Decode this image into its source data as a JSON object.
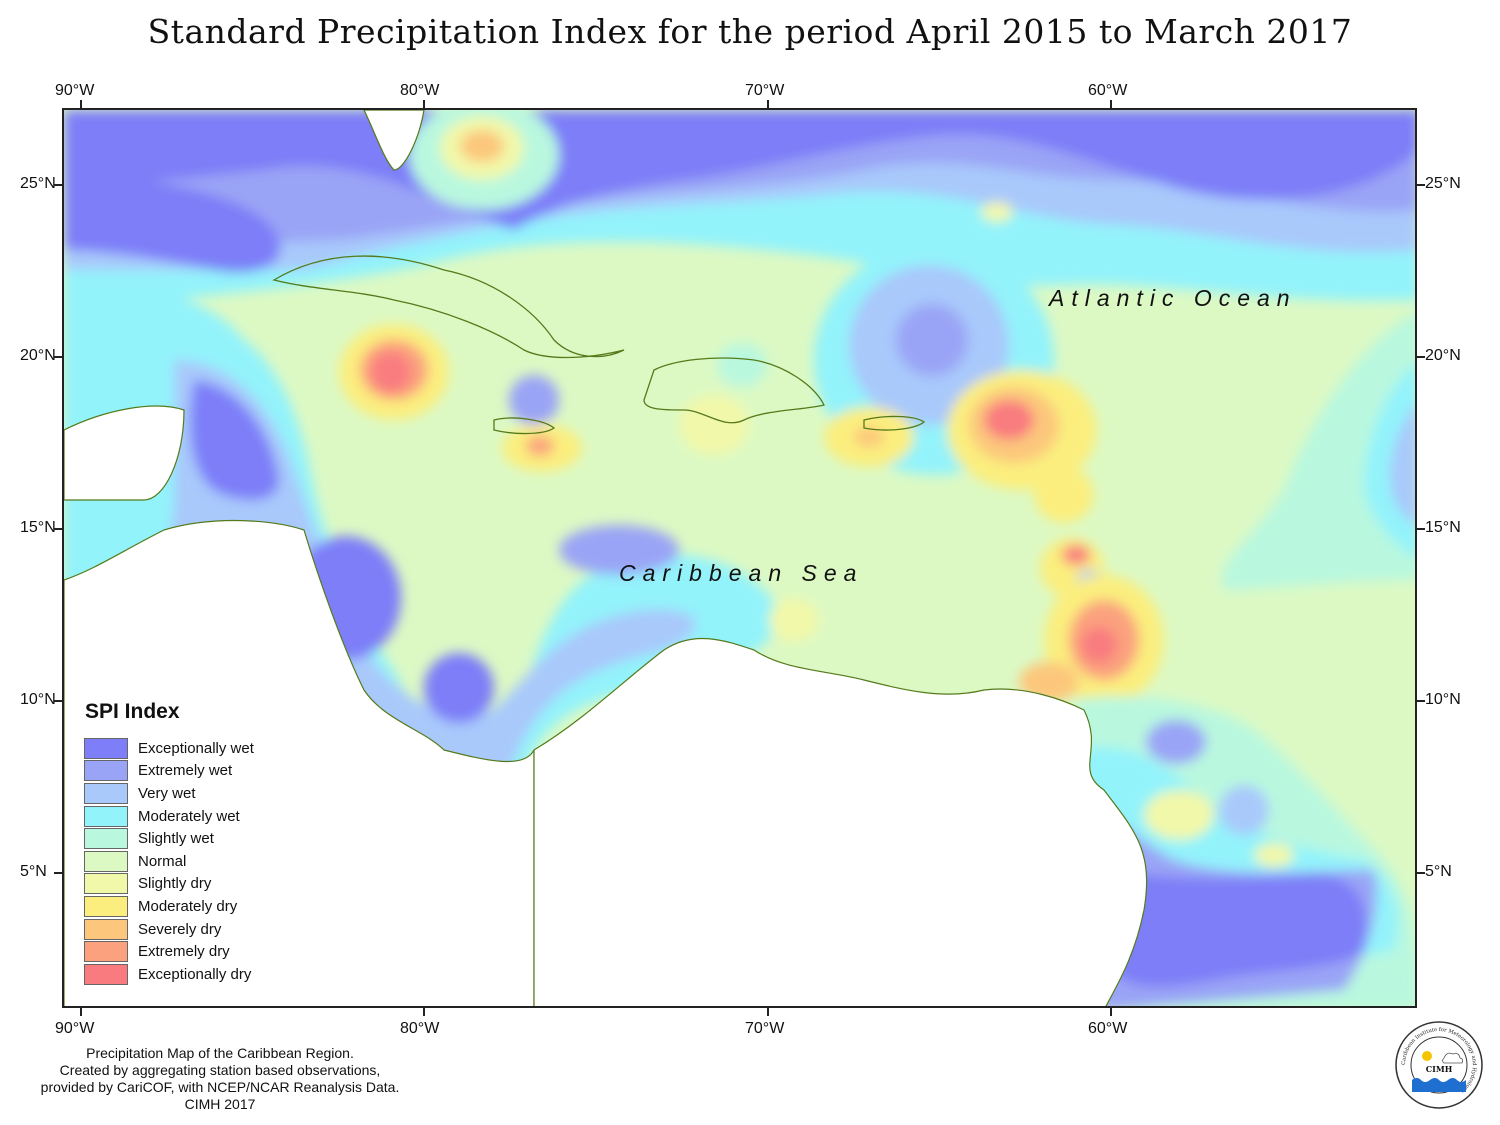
{
  "title": "Standard Precipitation Index for the period April 2015 to March 2017",
  "axes": {
    "lon_top": [
      "90°W",
      "80°W",
      "70°W",
      "60°W"
    ],
    "lon_bottom": [
      "90°W",
      "80°W",
      "70°W",
      "60°W"
    ],
    "lat_left": [
      "25°N",
      "20°N",
      "15°N",
      "10°N",
      "5°N"
    ],
    "lat_right": [
      "25°N",
      "20°N",
      "15°N",
      "10°N",
      "5°N"
    ]
  },
  "map": {
    "labels": {
      "atlantic": "Atlantic Ocean",
      "caribbean": "Caribbean Sea"
    },
    "colors": {
      "exceptionally_wet": "#7d7ef8",
      "extremely_wet": "#9aa4f6",
      "very_wet": "#a9c9fb",
      "moderately_wet": "#93f3fb",
      "slightly_wet": "#b9f8df",
      "normal": "#dcf9c4",
      "slightly_dry": "#f2f8a9",
      "moderately_dry": "#fbee7e",
      "severely_dry": "#fcc77c",
      "extremely_dry": "#fba17e",
      "exceptionally_dry": "#f97b7f"
    }
  },
  "legend": {
    "title": "SPI Index",
    "items": [
      {
        "label": "Exceptionally wet",
        "color": "#7d7ef8"
      },
      {
        "label": "Extremely wet",
        "color": "#9aa4f6"
      },
      {
        "label": "Very wet",
        "color": "#a9c9fb"
      },
      {
        "label": "Moderately wet",
        "color": "#93f3fb"
      },
      {
        "label": "Slightly wet",
        "color": "#b9f8df"
      },
      {
        "label": "Normal",
        "color": "#dcf9c4"
      },
      {
        "label": "Slightly dry",
        "color": "#f2f8a9"
      },
      {
        "label": "Moderately dry",
        "color": "#fbee7e"
      },
      {
        "label": "Severely dry",
        "color": "#fcc77c"
      },
      {
        "label": "Extremely dry",
        "color": "#fba17e"
      },
      {
        "label": "Exceptionally dry",
        "color": "#f97b7f"
      }
    ]
  },
  "footer": {
    "lines": [
      "Precipitation Map of the Caribbean Region.",
      "Created by aggregating station based observations,",
      "provided by CariCOF, with NCEP/NCAR Reanalysis Data.",
      "CIMH 2017"
    ]
  },
  "logo": {
    "text": "CIMH",
    "ring_text": "Caribbean Institute for Meteorology and Hydrology",
    "icon": "cimh-logo-icon"
  }
}
